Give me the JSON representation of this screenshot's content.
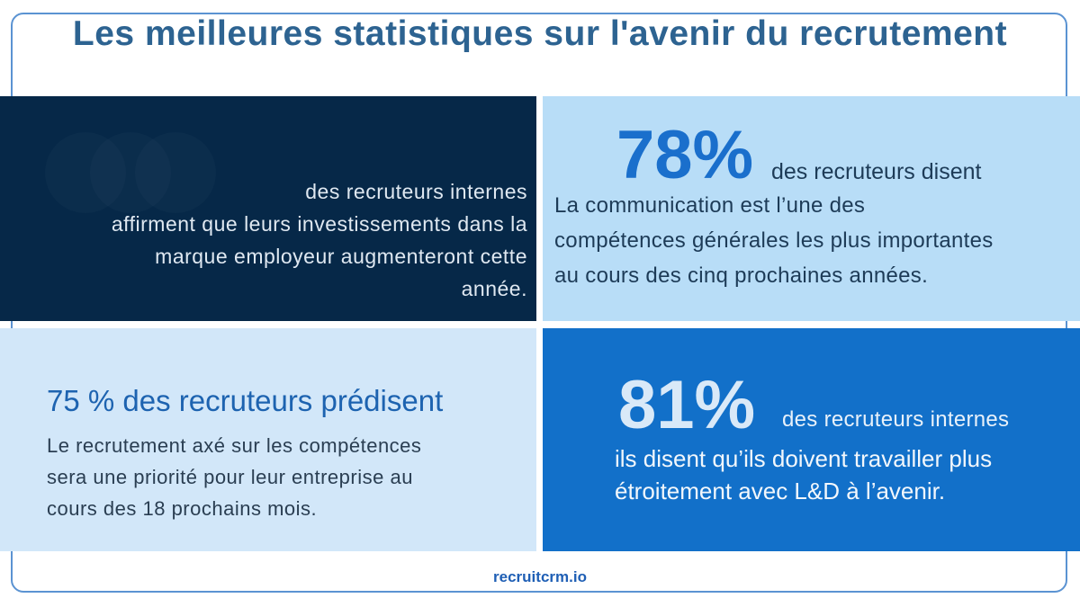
{
  "title": "Les meilleures statistiques sur l'avenir du recrutement",
  "stats": [
    {
      "text_lines": [
        "des recruteurs internes",
        "affirment que leurs investissements dans la",
        "marque employeur augmenteront cette",
        "année."
      ]
    },
    {
      "value": "78%",
      "subtitle": "des recruteurs disent",
      "text_lines": [
        "La communication est l’une des",
        "compétences générales les plus importantes",
        "au cours des cinq prochaines années."
      ]
    },
    {
      "heading": "75 % des recruteurs prédisent",
      "text_lines": [
        "Le recrutement axé sur les compétences",
        "sera une priorité pour leur entreprise au",
        "cours des 18 prochains mois."
      ]
    },
    {
      "value": "81%",
      "subtitle": "des recruteurs internes",
      "text_lines": [
        "ils disent qu’ils doivent travailler plus",
        "étroitement avec L&D à l’avenir."
      ]
    }
  ],
  "footer": "recruitcrm.io",
  "colors": {
    "title": "#2d6391",
    "dark_box": "#062848",
    "light_box": "#b8ddf7",
    "pale_box": "#d2e7f9",
    "blue_box": "#1270c9"
  }
}
